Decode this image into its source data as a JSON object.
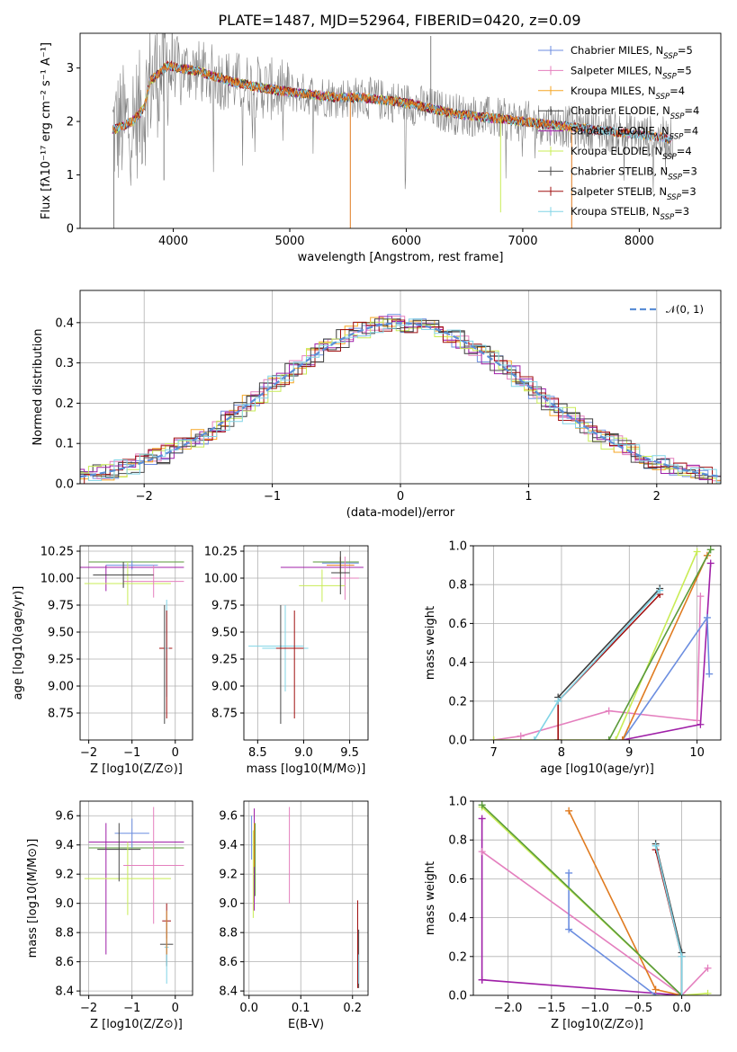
{
  "colors": {
    "chabrier_miles": "#6c8ee0",
    "salpeter_miles": "#e47fbe",
    "kroupa_miles": "#f5a623",
    "chabrier_elodie": "#3d3d3d",
    "salpeter_elodie": "#a020a8",
    "kroupa_elodie": "#c8ec55",
    "chabrier_stelib": "#4a4a4a",
    "salpeter_stelib": "#a01010",
    "kroupa_stelib": "#80d4e6",
    "data": "#808080",
    "orange": "#e07b20",
    "green": "#5a9a3a",
    "normal": "#5b8ed6"
  },
  "legend_labels": [
    "Chabrier MILES, N",
    "Salpeter MILES, N",
    "Kroupa MILES, N",
    "Chabrier ELODIE, N",
    "Salpeter ELODIE, N",
    "Kroupa ELODIE, N",
    "Chabrier STELIB, N",
    "Salpeter STELIB, N",
    "Kroupa STELIB, N"
  ],
  "legend_sub": "SSP",
  "legend_counts": [
    "=5",
    "=5",
    "=4",
    "=4",
    "=4",
    "=4",
    "=3",
    "=3",
    "=3"
  ],
  "chart_data": [
    {
      "type": "line",
      "title": "PLATE=1487, MJD=52964, FIBERID=0420, z=0.09",
      "xlabel": "wavelength [Angstrom, rest frame]",
      "ylabel": "Flux [fλ10⁻¹⁷ erg cm⁻² s⁻¹ A⁻¹]",
      "xlim": [
        3200,
        8700
      ],
      "ylim": [
        0,
        3.65
      ],
      "xticks": [
        "4000",
        "5000",
        "6000",
        "7000",
        "8000"
      ],
      "yticks": [
        "0",
        "1",
        "2",
        "3"
      ],
      "continuum": {
        "x": [
          3500,
          3650,
          3750,
          3800,
          3900,
          3950,
          4050,
          4200,
          4350,
          4500,
          4700,
          4850,
          5000,
          5200,
          5400,
          5600,
          5800,
          6000,
          6200,
          6400,
          6600,
          6800,
          7000,
          7200,
          7400,
          7600,
          7800,
          8000,
          8200,
          8300
        ],
        "y": [
          1.85,
          2.0,
          2.25,
          2.75,
          2.95,
          3.05,
          3.0,
          2.95,
          2.85,
          2.75,
          2.65,
          2.6,
          2.55,
          2.5,
          2.45,
          2.45,
          2.4,
          2.35,
          2.25,
          2.15,
          2.1,
          2.05,
          2.0,
          1.95,
          1.9,
          1.85,
          1.8,
          1.75,
          1.7,
          1.65
        ]
      }
    },
    {
      "type": "line",
      "xlabel": "(data-model)/error",
      "ylabel": "Normed distribution",
      "legend": "𝒩(0, 1)",
      "xlim": [
        -2.5,
        2.5
      ],
      "ylim": [
        0,
        0.48
      ],
      "xticks": [
        "−2",
        "−1",
        "0",
        "1",
        "2"
      ],
      "yticks": [
        "0.0",
        "0.1",
        "0.2",
        "0.3",
        "0.4"
      ]
    },
    {
      "type": "scatter",
      "xlabel": "Z [log10(Z/Z⊙)]",
      "ylabel": "age  [log10(age/yr)]",
      "xlim": [
        -2.2,
        0.4
      ],
      "ylim": [
        8.5,
        10.3
      ],
      "xticks": [
        "−2",
        "−1",
        "0"
      ],
      "yticks": [
        "8.75",
        "9.00",
        "9.25",
        "9.50",
        "9.75",
        "10.00",
        "10.25"
      ]
    },
    {
      "type": "scatter",
      "xlabel": "mass [log10(M/M⊙)]",
      "xlim": [
        8.35,
        9.7
      ],
      "ylim": [
        8.5,
        10.3
      ],
      "xticks": [
        "8.5",
        "9.0",
        "9.5"
      ],
      "yticks": [
        "8.75",
        "9.00",
        "9.25",
        "9.50",
        "9.75",
        "10.00",
        "10.25"
      ]
    },
    {
      "type": "line",
      "xlabel": "age  [log10(age/yr)]",
      "ylabel": "mass weight",
      "xlim": [
        6.7,
        10.35
      ],
      "ylim": [
        0,
        1
      ],
      "xticks": [
        "7",
        "8",
        "9",
        "10"
      ],
      "yticks": [
        "0.0",
        "0.2",
        "0.4",
        "0.6",
        "0.8",
        "1.0"
      ],
      "series": [
        {
          "color": "#e47fbe",
          "x": [
            7.0,
            7.4,
            8.7,
            10.0,
            10.05
          ],
          "y": [
            0.0,
            0.02,
            0.15,
            0.1,
            0.74
          ]
        },
        {
          "color": "#a020a8",
          "x": [
            8.9,
            10.05,
            10.2
          ],
          "y": [
            0.0,
            0.08,
            0.91
          ]
        },
        {
          "color": "#6c8ee0",
          "x": [
            8.9,
            10.15,
            10.18
          ],
          "y": [
            0.0,
            0.63,
            0.34
          ]
        },
        {
          "color": "#c8ec55",
          "x": [
            7.0,
            8.8,
            10.0
          ],
          "y": [
            0.0,
            0.0,
            0.97
          ]
        },
        {
          "color": "#e07b20",
          "x": [
            8.9,
            10.15
          ],
          "y": [
            0.0,
            0.95
          ]
        },
        {
          "color": "#5a9a3a",
          "x": [
            8.7,
            10.2
          ],
          "y": [
            0.0,
            0.98
          ]
        },
        {
          "color": "#a01010",
          "x": [
            7.95,
            7.95,
            9.45
          ],
          "y": [
            0.0,
            0.2,
            0.75
          ]
        },
        {
          "color": "#3d3d3d",
          "x": [
            7.95,
            9.45
          ],
          "y": [
            0.22,
            0.78
          ]
        },
        {
          "color": "#80d4e6",
          "x": [
            7.6,
            7.95,
            9.45
          ],
          "y": [
            0.0,
            0.2,
            0.77
          ]
        }
      ]
    },
    {
      "type": "scatter",
      "xlabel": "Z [log10(Z/Z⊙)]",
      "ylabel": "mass [log10(M/M⊙)]",
      "xlim": [
        -2.2,
        0.4
      ],
      "ylim": [
        8.37,
        9.7
      ],
      "xticks": [
        "−2",
        "−1",
        "0"
      ],
      "yticks": [
        "8.4",
        "8.6",
        "8.8",
        "9.0",
        "9.2",
        "9.4",
        "9.6"
      ]
    },
    {
      "type": "scatter",
      "xlabel": "E(B-V)",
      "xlim": [
        -0.01,
        0.23
      ],
      "ylim": [
        8.37,
        9.7
      ],
      "xticks": [
        "0.0",
        "0.1",
        "0.2"
      ],
      "yticks": [
        "8.4",
        "8.6",
        "8.8",
        "9.0",
        "9.2",
        "9.4",
        "9.6"
      ]
    },
    {
      "type": "line",
      "xlabel": "Z [log10(Z/Z⊙)]",
      "ylabel": "mass weight",
      "xlim": [
        -2.4,
        0.45
      ],
      "ylim": [
        0,
        1
      ],
      "xticks": [
        "−2.0",
        "−1.5",
        "−1.0",
        "−0.5",
        "0.0"
      ],
      "yticks": [
        "0.0",
        "0.2",
        "0.4",
        "0.6",
        "0.8",
        "1.0"
      ],
      "series": [
        {
          "color": "#a020a8",
          "x": [
            -2.3,
            -2.3,
            -2.3,
            0.0
          ],
          "y": [
            0.91,
            0.08,
            0.08,
            0.0
          ]
        },
        {
          "color": "#e47fbe",
          "x": [
            -2.3,
            0.0,
            0.3
          ],
          "y": [
            0.74,
            0.0,
            0.14
          ]
        },
        {
          "color": "#6c8ee0",
          "x": [
            -1.3,
            -1.3,
            -0.3
          ],
          "y": [
            0.63,
            0.34,
            0.0
          ]
        },
        {
          "color": "#e07b20",
          "x": [
            -1.3,
            -0.3,
            0.0
          ],
          "y": [
            0.95,
            0.03,
            0.0
          ]
        },
        {
          "color": "#c8ec55",
          "x": [
            -2.3,
            0.0,
            0.3
          ],
          "y": [
            0.97,
            0.0,
            0.01
          ]
        },
        {
          "color": "#5a9a3a",
          "x": [
            -2.3,
            0.0
          ],
          "y": [
            0.98,
            0.0
          ]
        },
        {
          "color": "#a01010",
          "x": [
            -0.3,
            0.0,
            0.0
          ],
          "y": [
            0.75,
            0.2,
            0.0
          ]
        },
        {
          "color": "#3d3d3d",
          "x": [
            -0.3,
            0.0,
            0.0
          ],
          "y": [
            0.78,
            0.22,
            0.0
          ]
        },
        {
          "color": "#80d4e6",
          "x": [
            -0.3,
            0.0,
            0.0
          ],
          "y": [
            0.77,
            0.2,
            0.0
          ]
        }
      ]
    }
  ]
}
